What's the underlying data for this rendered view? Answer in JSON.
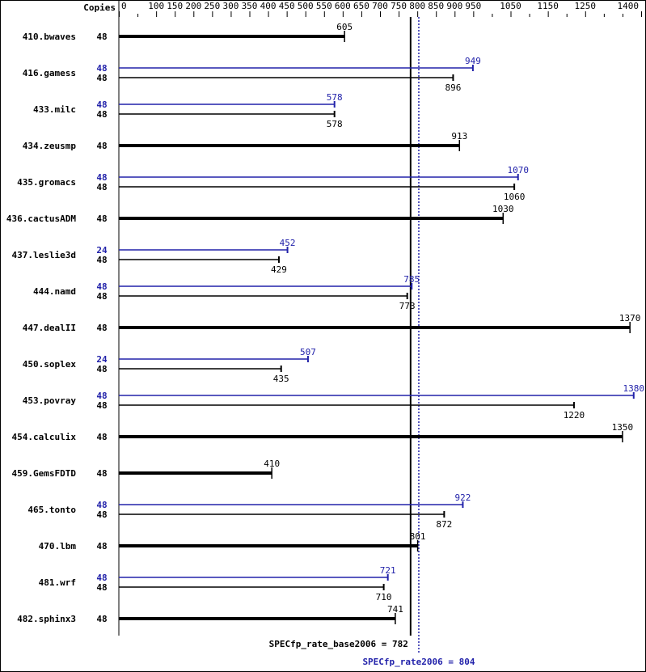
{
  "chart_data": {
    "type": "bar",
    "orientation": "horizontal",
    "copies_header": "Copies",
    "xlim": [
      0,
      1400
    ],
    "tick_step": 50,
    "tick_labels": [
      0,
      100,
      150,
      200,
      250,
      300,
      350,
      400,
      450,
      500,
      550,
      600,
      650,
      700,
      750,
      800,
      850,
      900,
      950,
      1050,
      1150,
      1250,
      1400
    ],
    "colors": {
      "base": "#000000",
      "peak": "#2222aa"
    },
    "benchmarks": [
      {
        "name": "410.bwaves",
        "base_copies": "48",
        "base": 605
      },
      {
        "name": "416.gamess",
        "peak_copies": "48",
        "peak": 949,
        "base_copies": "48",
        "base": 896
      },
      {
        "name": "433.milc",
        "peak_copies": "48",
        "peak": 578,
        "base_copies": "48",
        "base": 578
      },
      {
        "name": "434.zeusmp",
        "base_copies": "48",
        "base": 913
      },
      {
        "name": "435.gromacs",
        "peak_copies": "48",
        "peak": 1070,
        "base_copies": "48",
        "base": 1060
      },
      {
        "name": "436.cactusADM",
        "base_copies": "48",
        "base": 1030
      },
      {
        "name": "437.leslie3d",
        "peak_copies": "24",
        "peak": 452,
        "base_copies": "48",
        "base": 429
      },
      {
        "name": "444.namd",
        "peak_copies": "48",
        "peak": 785,
        "base_copies": "48",
        "base": 773
      },
      {
        "name": "447.dealII",
        "base_copies": "48",
        "base": 1370
      },
      {
        "name": "450.soplex",
        "peak_copies": "24",
        "peak": 507,
        "base_copies": "48",
        "base": 435
      },
      {
        "name": "453.povray",
        "peak_copies": "48",
        "peak": 1380,
        "base_copies": "48",
        "base": 1220
      },
      {
        "name": "454.calculix",
        "base_copies": "48",
        "base": 1350
      },
      {
        "name": "459.GemsFDTD",
        "base_copies": "48",
        "base": 410
      },
      {
        "name": "465.tonto",
        "peak_copies": "48",
        "peak": 922,
        "base_copies": "48",
        "base": 872
      },
      {
        "name": "470.lbm",
        "base_copies": "48",
        "base": 801
      },
      {
        "name": "481.wrf",
        "peak_copies": "48",
        "peak": 721,
        "base_copies": "48",
        "base": 710
      },
      {
        "name": "482.sphinx3",
        "base_copies": "48",
        "base": 741
      }
    ],
    "base_mean": {
      "label": "SPECfp_rate_base2006 = 782",
      "value": 782
    },
    "peak_mean": {
      "label": "SPECfp_rate2006 = 804",
      "value": 804
    }
  }
}
